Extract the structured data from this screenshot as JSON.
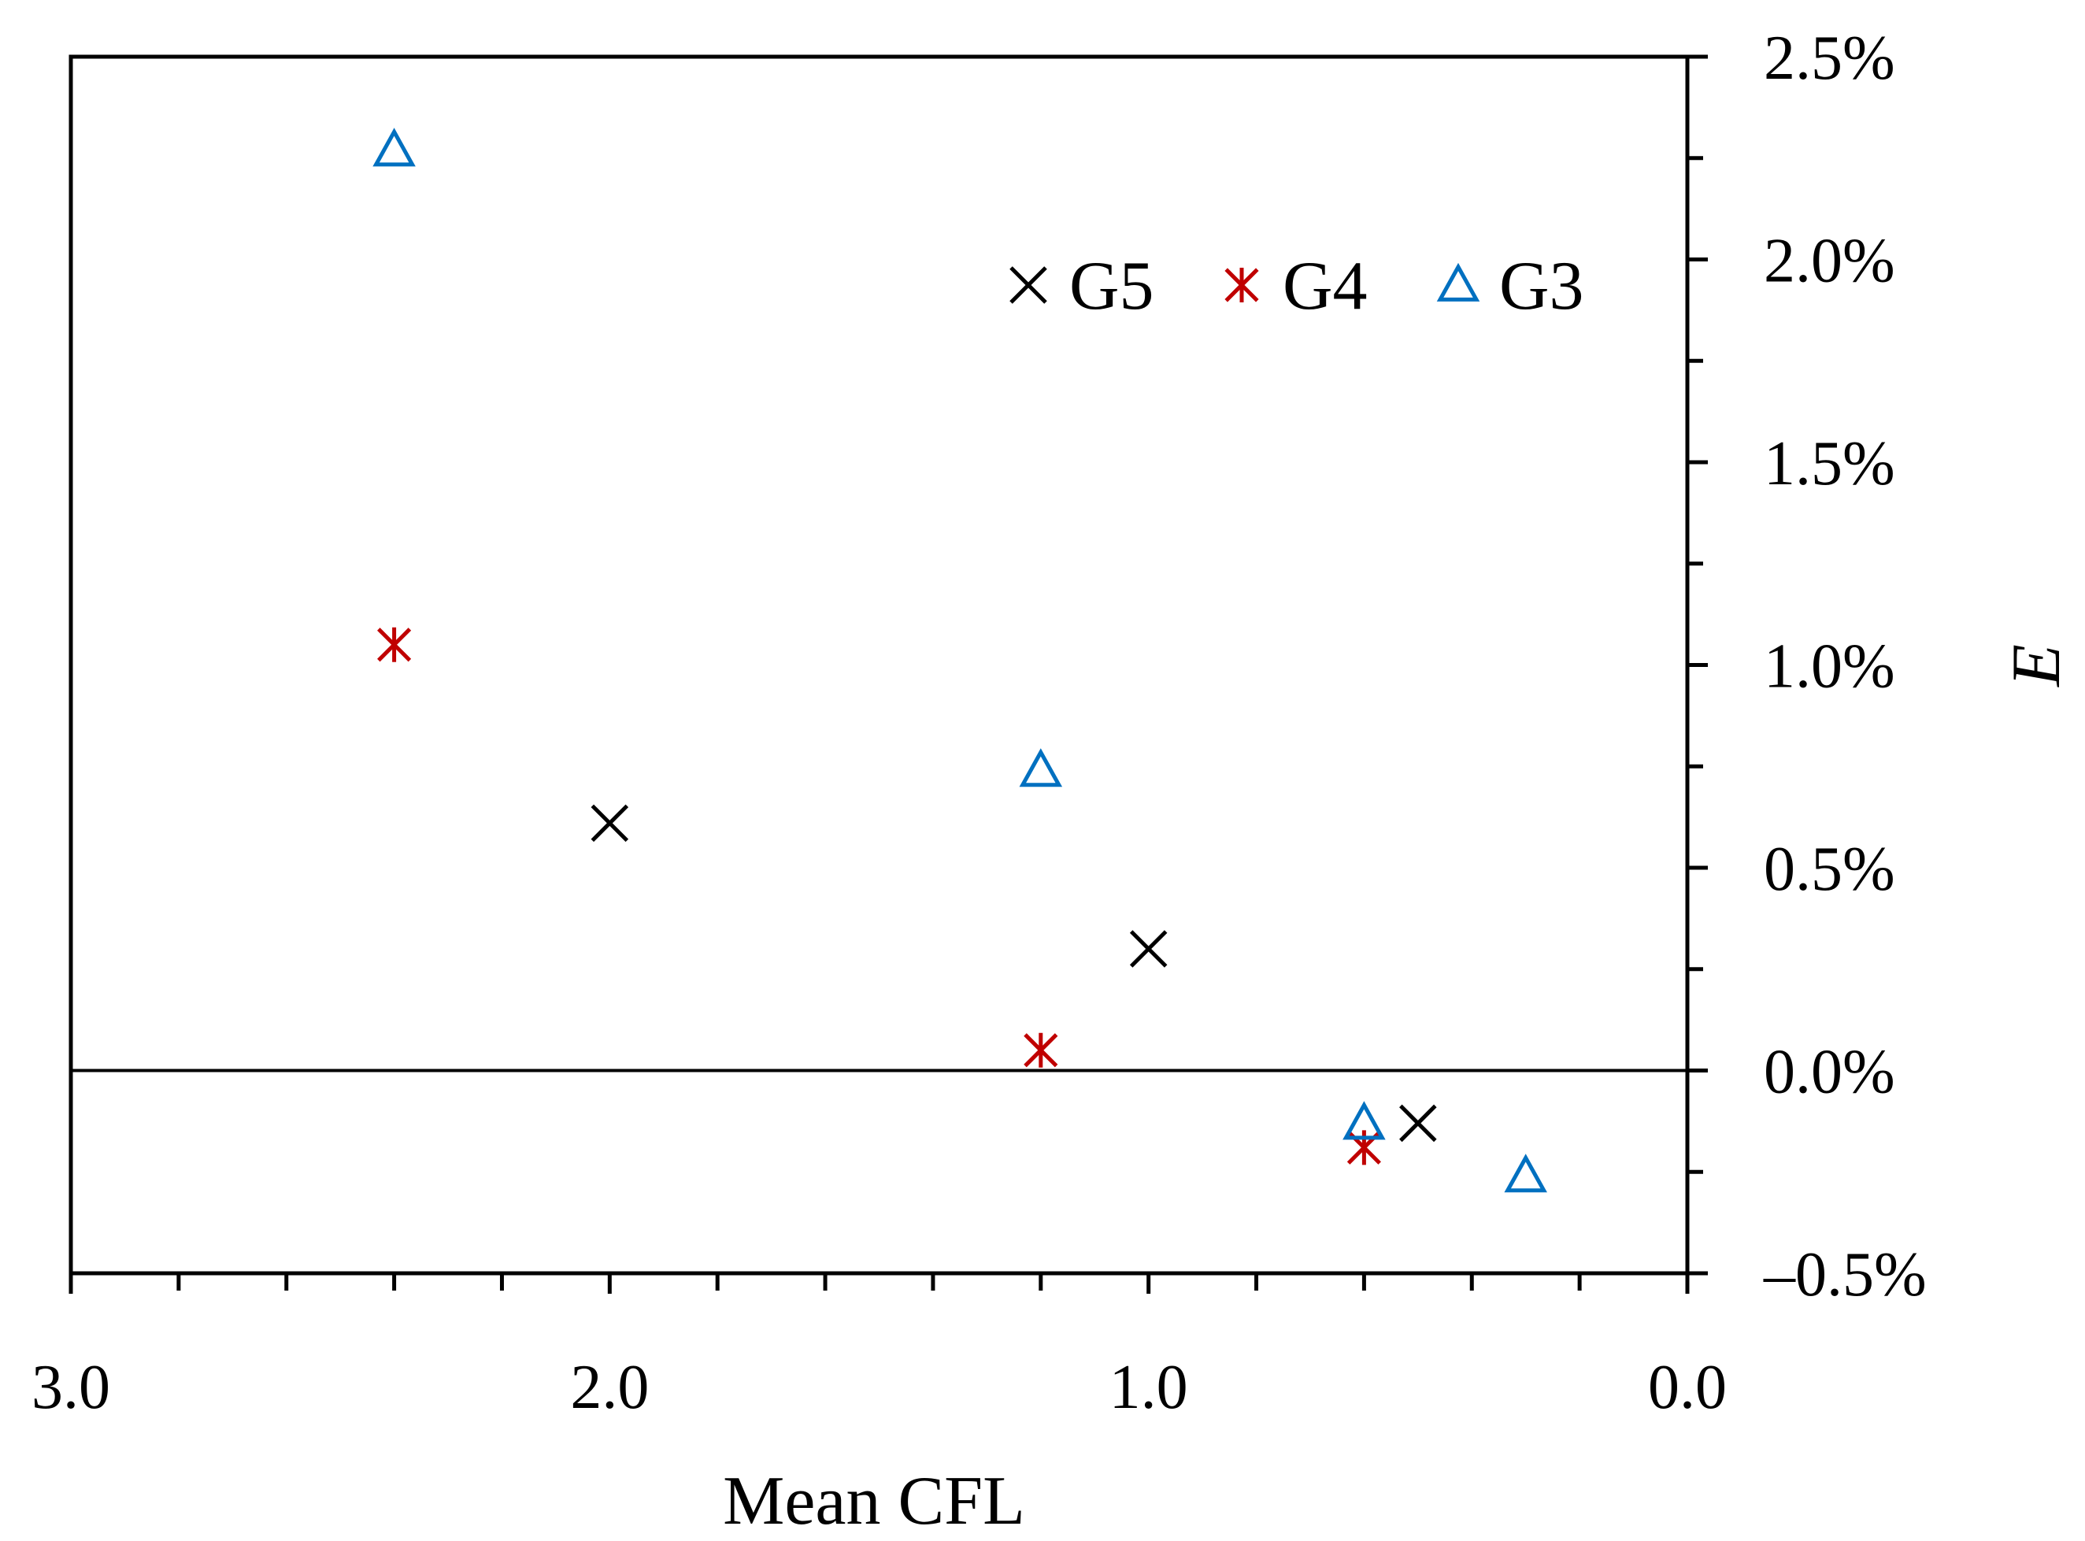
{
  "chart_data": {
    "type": "scatter",
    "title": "",
    "xlabel": "Mean CFL",
    "ylabel": "E",
    "xlim": [
      3.0,
      0.0
    ],
    "ylim": [
      -0.5,
      2.5
    ],
    "x_reversed": true,
    "y_axis_side": "right",
    "x_ticks": [
      3.0,
      2.0,
      1.0,
      0.0
    ],
    "x_tick_labels": [
      "3.0",
      "2.0",
      "1.0",
      "0.0"
    ],
    "x_minor_step": 0.2,
    "y_ticks": [
      -0.5,
      0.0,
      0.5,
      1.0,
      1.5,
      2.0,
      2.5
    ],
    "y_tick_labels": [
      "–0.5%",
      "0.0%",
      "0.5%",
      "1.0%",
      "1.5%",
      "2.0%",
      "2.5%"
    ],
    "y_minor_step": 0.25,
    "y_unit": "%",
    "zero_line": true,
    "grid": false,
    "legend": "top-right",
    "series": [
      {
        "name": "G5",
        "marker": "x",
        "color": "#000000",
        "points": [
          [
            2.0,
            0.61
          ],
          [
            1.0,
            0.3
          ],
          [
            0.5,
            -0.13
          ]
        ]
      },
      {
        "name": "G4",
        "marker": "asterisk",
        "color": "#c00000",
        "points": [
          [
            2.4,
            1.05
          ],
          [
            1.2,
            0.05
          ],
          [
            0.6,
            -0.19
          ]
        ]
      },
      {
        "name": "G3",
        "marker": "triangle",
        "color": "#0070c0",
        "points": [
          [
            2.4,
            2.27
          ],
          [
            1.2,
            0.74
          ],
          [
            0.6,
            -0.13
          ],
          [
            0.3,
            -0.26
          ]
        ]
      }
    ]
  }
}
